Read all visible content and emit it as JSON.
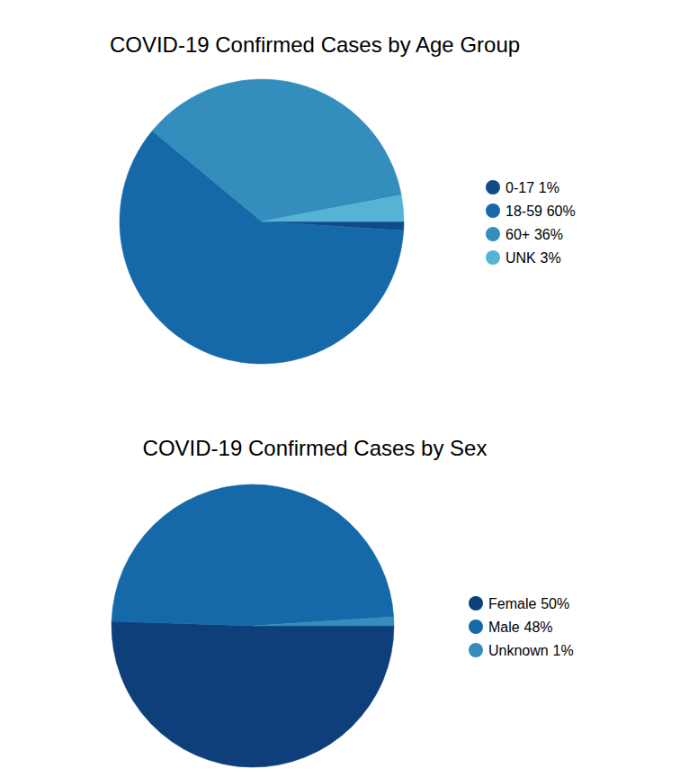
{
  "chart_data": [
    {
      "type": "pie",
      "title": "COVID-19 Confirmed Cases by Age Group",
      "categories": [
        "0-17",
        "18-59",
        "60+",
        "UNK"
      ],
      "values": [
        1,
        60,
        36,
        3
      ],
      "value_labels": [
        "1%",
        "60%",
        "36%",
        "3%"
      ],
      "colors": [
        "#124a8c",
        "#1569a8",
        "#338dbd",
        "#55b4d4"
      ],
      "legend": "right"
    },
    {
      "type": "pie",
      "title": "COVID-19 Confirmed Cases by Sex",
      "categories": [
        "Female",
        "Male",
        "Unknown"
      ],
      "values": [
        50,
        48,
        1
      ],
      "value_labels": [
        "50%",
        "48%",
        "1%"
      ],
      "colors": [
        "#0f3f7a",
        "#1569a8",
        "#338dbd"
      ],
      "legend": "right"
    }
  ]
}
